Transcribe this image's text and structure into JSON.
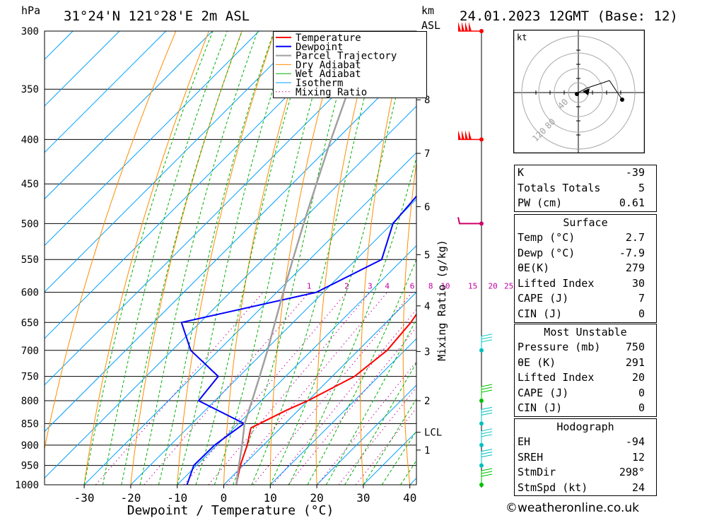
{
  "header": {
    "location": "31°24'N 121°28'E 2m ASL",
    "datetime": "24.01.2023 12GMT (Base: 12)",
    "pressure_unit": "hPa",
    "height_unit": "km",
    "height_unit2": "ASL"
  },
  "colors": {
    "temperature": "#ff0000",
    "dewpoint": "#0000ff",
    "parcel": "#a0a0a0",
    "dry_adiabat": "#ff8c00",
    "wet_adiabat": "#00b000",
    "isotherm": "#00a0ff",
    "mixing_ratio": "#c000a0",
    "wind": "#00c0c0"
  },
  "chart_data": {
    "type": "line",
    "title": "",
    "xlabel": "Dewpoint / Temperature (°C)",
    "ylabel": "hPa",
    "y_axis_right_label": "Mixing Ratio (g/kg)",
    "xlim": [
      -40,
      40
    ],
    "ylim": [
      1000,
      300
    ],
    "log_scale_y": true,
    "grid": true,
    "legend_position": "top-right",
    "x_ticks": [
      -30,
      -20,
      -10,
      0,
      10,
      20,
      30,
      40
    ],
    "pressure_levels": [
      300,
      350,
      400,
      450,
      500,
      550,
      600,
      650,
      700,
      750,
      800,
      850,
      900,
      950,
      1000
    ],
    "height_ticks_km": [
      {
        "label": "8",
        "p": 360
      },
      {
        "label": "7",
        "p": 415
      },
      {
        "label": "6",
        "p": 478
      },
      {
        "label": "5",
        "p": 543
      },
      {
        "label": "4",
        "p": 622
      },
      {
        "label": "3",
        "p": 702
      },
      {
        "label": "2",
        "p": 800
      },
      {
        "label": "LCL",
        "p": 870
      },
      {
        "label": "1",
        "p": 912
      }
    ],
    "mixing_ratio_labels": [
      "1",
      "2",
      "3",
      "4",
      "6",
      "8",
      "10",
      "15",
      "20",
      "25"
    ],
    "legend": [
      "Temperature",
      "Dewpoint",
      "Parcel Trajectory",
      "Dry Adiabat",
      "Wet Adiabat",
      "Isotherm",
      "Mixing Ratio"
    ],
    "series": [
      {
        "name": "Temperature",
        "points": [
          [
            1000,
            2.7
          ],
          [
            950,
            -0.6
          ],
          [
            900,
            -3.5
          ],
          [
            860,
            -6.4
          ],
          [
            820,
            -2.5
          ],
          [
            800,
            0.0
          ],
          [
            750,
            4.8
          ],
          [
            700,
            6.2
          ],
          [
            650,
            5.3
          ],
          [
            600,
            3.3
          ],
          [
            550,
            3.9
          ],
          [
            500,
            -0.8
          ],
          [
            450,
            -6.5
          ],
          [
            400,
            -13.2
          ],
          [
            350,
            -21.0
          ],
          [
            300,
            -28.5
          ]
        ]
      },
      {
        "name": "Dewpoint",
        "points": [
          [
            1000,
            -7.9
          ],
          [
            950,
            -10.6
          ],
          [
            900,
            -10.5
          ],
          [
            850,
            -8.8
          ],
          [
            800,
            -23.5
          ],
          [
            750,
            -24.5
          ],
          [
            700,
            -36.0
          ],
          [
            650,
            -44.0
          ],
          [
            600,
            -21.5
          ],
          [
            550,
            -14.5
          ],
          [
            500,
            -19.8
          ],
          [
            450,
            -21.0
          ],
          [
            400,
            -26.0
          ],
          [
            350,
            -30.0
          ],
          [
            300,
            -47.0
          ]
        ]
      },
      {
        "name": "Parcel Trajectory",
        "points": [
          [
            1000,
            2.7
          ],
          [
            950,
            -0.9
          ],
          [
            900,
            -4.6
          ],
          [
            850,
            -8.7
          ],
          [
            800,
            -12.0
          ],
          [
            750,
            -15.6
          ],
          [
            700,
            -19.5
          ],
          [
            650,
            -23.9
          ],
          [
            600,
            -28.6
          ],
          [
            550,
            -33.6
          ],
          [
            500,
            -39.0
          ],
          [
            450,
            -44.8
          ],
          [
            400,
            -51.2
          ],
          [
            350,
            -58.2
          ],
          [
            300,
            -66.2
          ]
        ]
      }
    ]
  },
  "wind": {
    "barbs_at": [
      300,
      400,
      500,
      700,
      800,
      850,
      900,
      950,
      1000
    ],
    "hodograph_unit": "kt",
    "hodograph_rings": [
      "40",
      "80",
      "120"
    ]
  },
  "indices": {
    "rows": [
      {
        "label": "K",
        "value": "-39"
      },
      {
        "label": "Totals Totals",
        "value": "5"
      },
      {
        "label": "PW (cm)",
        "value": "0.61"
      }
    ]
  },
  "surface": {
    "title": "Surface",
    "rows": [
      {
        "label": "Temp (°C)",
        "value": "2.7"
      },
      {
        "label": "Dewp (°C)",
        "value": "-7.9"
      },
      {
        "label": "θE(K)",
        "value": "279"
      },
      {
        "label": "Lifted Index",
        "value": "30"
      },
      {
        "label": "CAPE (J)",
        "value": "7"
      },
      {
        "label": "CIN (J)",
        "value": "0"
      }
    ]
  },
  "most_unstable": {
    "title": "Most Unstable",
    "rows": [
      {
        "label": "Pressure (mb)",
        "value": "750"
      },
      {
        "label": "θE (K)",
        "value": "291"
      },
      {
        "label": "Lifted Index",
        "value": "20"
      },
      {
        "label": "CAPE (J)",
        "value": "0"
      },
      {
        "label": "CIN (J)",
        "value": "0"
      }
    ]
  },
  "hodograph_table": {
    "title": "Hodograph",
    "rows": [
      {
        "label": "EH",
        "value": "-94"
      },
      {
        "label": "SREH",
        "value": "12"
      },
      {
        "label": "StmDir",
        "value": "298°"
      },
      {
        "label": "StmSpd (kt)",
        "value": "24"
      }
    ]
  },
  "credit": "©weatheronline.co.uk"
}
